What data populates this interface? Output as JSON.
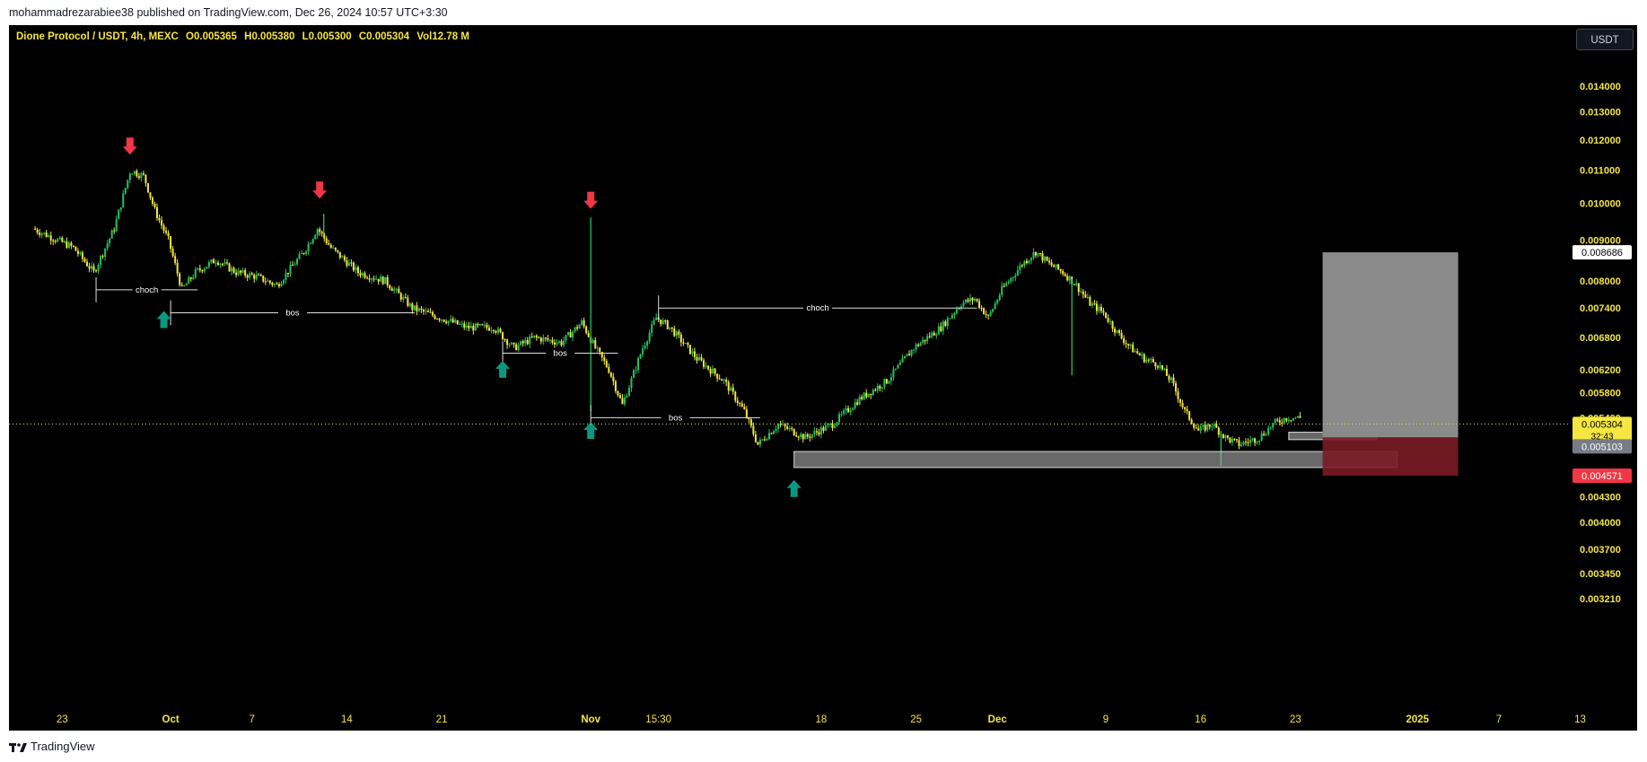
{
  "header": {
    "published_line": "mohammadrezarabiee38 published on TradingView.com, Dec 26, 2024 10:57 UTC+3:30"
  },
  "symbol_legend": {
    "name": "Dione Protocol / USDT, 4h, MEXC",
    "open": "O0.005365",
    "high": "H0.005380",
    "low": "L0.005300",
    "close": "C0.005304",
    "volume": "Vol12.78 M"
  },
  "currency_button": "USDT",
  "footer": {
    "brand": "TradingView",
    "logo_icon": "tradingview-logo-icon"
  },
  "colors": {
    "background": "#000000",
    "candle_up": "#22c55e",
    "candle_down": "#f5e642",
    "arrow_up": "#089981",
    "arrow_down": "#f23645",
    "stop_zone": "#7a1b22",
    "target_zone": "#8a8a8a",
    "price_label_current": "#f5e642",
    "price_label_stop": "#f23645"
  },
  "chart_data": {
    "type": "candlestick",
    "symbol": "Dione Protocol / USDT",
    "timeframe": "4h",
    "exchange": "MEXC",
    "y_scale": "log",
    "ylim": [
      0.00321,
      0.0155
    ],
    "y_ticks": [
      {
        "value": 0.014,
        "label": "0.014000"
      },
      {
        "value": 0.013,
        "label": "0.013000"
      },
      {
        "value": 0.012,
        "label": "0.012000"
      },
      {
        "value": 0.011,
        "label": "0.011000"
      },
      {
        "value": 0.01,
        "label": "0.010000"
      },
      {
        "value": 0.009,
        "label": "0.009000"
      },
      {
        "value": 0.008,
        "label": "0.008000"
      },
      {
        "value": 0.0074,
        "label": "0.007400"
      },
      {
        "value": 0.0068,
        "label": "0.006800"
      },
      {
        "value": 0.0062,
        "label": "0.006200"
      },
      {
        "value": 0.0058,
        "label": "0.005800"
      },
      {
        "value": 0.0054,
        "label": "0.005400"
      },
      {
        "value": 0.0043,
        "label": "0.004300"
      },
      {
        "value": 0.004,
        "label": "0.004000"
      },
      {
        "value": 0.0037,
        "label": "0.003700"
      },
      {
        "value": 0.00345,
        "label": "0.003450"
      },
      {
        "value": 0.00321,
        "label": "0.003210"
      }
    ],
    "x_ticks": [
      {
        "day": -7,
        "label": "23"
      },
      {
        "day": 1,
        "label": "Oct"
      },
      {
        "day": 7,
        "label": "7"
      },
      {
        "day": 14,
        "label": "14"
      },
      {
        "day": 21,
        "label": "21"
      },
      {
        "day": 32,
        "label": "Nov"
      },
      {
        "day": 37,
        "label": "15:30"
      },
      {
        "day": 49,
        "label": "18"
      },
      {
        "day": 56,
        "label": "25"
      },
      {
        "day": 62,
        "label": "Dec"
      },
      {
        "day": 70,
        "label": "9"
      },
      {
        "day": 77,
        "label": "16"
      },
      {
        "day": 84,
        "label": "23"
      },
      {
        "day": 93,
        "label": "2025"
      },
      {
        "day": 99,
        "label": "7"
      },
      {
        "day": 105,
        "label": "13"
      }
    ],
    "price_path": [
      [
        -9,
        0.0093
      ],
      [
        -6,
        0.0088
      ],
      [
        -4.5,
        0.0082
      ],
      [
        -3,
        0.0093
      ],
      [
        -1.8,
        0.011
      ],
      [
        -0.8,
        0.0108
      ],
      [
        0,
        0.0098
      ],
      [
        1,
        0.009
      ],
      [
        2,
        0.0078
      ],
      [
        3,
        0.0082
      ],
      [
        4.5,
        0.0085
      ],
      [
        6,
        0.0082
      ],
      [
        7.5,
        0.0081
      ],
      [
        9,
        0.0079
      ],
      [
        11,
        0.0087
      ],
      [
        12,
        0.0093
      ],
      [
        13,
        0.0088
      ],
      [
        15,
        0.0082
      ],
      [
        17,
        0.008
      ],
      [
        19,
        0.0074
      ],
      [
        21,
        0.0072
      ],
      [
        23,
        0.007
      ],
      [
        25,
        0.007
      ],
      [
        26.5,
        0.0066
      ],
      [
        28,
        0.0068
      ],
      [
        30,
        0.0067
      ],
      [
        31.5,
        0.0071
      ],
      [
        32.5,
        0.0066
      ],
      [
        33.5,
        0.0062
      ],
      [
        34.5,
        0.0056
      ],
      [
        36,
        0.0066
      ],
      [
        37,
        0.0072
      ],
      [
        38,
        0.007
      ],
      [
        40,
        0.0064
      ],
      [
        42,
        0.006
      ],
      [
        43.5,
        0.0055
      ],
      [
        44.5,
        0.005
      ],
      [
        46,
        0.0053
      ],
      [
        48,
        0.0051
      ],
      [
        50,
        0.0053
      ],
      [
        52,
        0.0057
      ],
      [
        54,
        0.006
      ],
      [
        56,
        0.0066
      ],
      [
        58,
        0.007
      ],
      [
        59.5,
        0.0075
      ],
      [
        60.5,
        0.0076
      ],
      [
        61.5,
        0.0072
      ],
      [
        62.5,
        0.0078
      ],
      [
        64,
        0.0084
      ],
      [
        65,
        0.0087
      ],
      [
        66,
        0.0084
      ],
      [
        67,
        0.0082
      ],
      [
        68,
        0.0079
      ],
      [
        69,
        0.0075
      ],
      [
        70,
        0.0073
      ],
      [
        71,
        0.0069
      ],
      [
        72,
        0.0066
      ],
      [
        73,
        0.0064
      ],
      [
        74,
        0.0063
      ],
      [
        75,
        0.006
      ],
      [
        76,
        0.0055
      ],
      [
        77,
        0.0052
      ],
      [
        78,
        0.0053
      ],
      [
        79,
        0.0051
      ],
      [
        80,
        0.005
      ],
      [
        81.5,
        0.0051
      ],
      [
        82.5,
        0.0053
      ],
      [
        83.5,
        0.0054
      ],
      [
        84.5,
        0.0054
      ]
    ],
    "spikes": [
      {
        "day": 12.3,
        "high": 0.0097
      },
      {
        "day": 32.0,
        "high": 0.0096,
        "low": 0.0055
      },
      {
        "day": 67.5,
        "low": 0.0061
      },
      {
        "day": 78.5,
        "low": 0.0047
      }
    ],
    "current_price": {
      "value": 0.005304,
      "label": "0.005304",
      "countdown": "32:43"
    },
    "annotations": {
      "structure_lines": [
        {
          "label": "choch",
          "price": 0.0078,
          "from_day": -4.5,
          "to_day": 3.0
        },
        {
          "label": "bos",
          "price": 0.0073,
          "from_day": 1.0,
          "to_day": 19.0
        },
        {
          "label": "bos",
          "price": 0.0065,
          "from_day": 25.5,
          "to_day": 34.0
        },
        {
          "label": "bos",
          "price": 0.0054,
          "from_day": 32.0,
          "to_day": 44.5
        },
        {
          "label": "choch",
          "price": 0.0074,
          "from_day": 37.0,
          "to_day": 60.5
        }
      ],
      "arrows_up": [
        {
          "day": 0.5,
          "price": 0.00715
        },
        {
          "day": 25.5,
          "price": 0.0062
        },
        {
          "day": 32.0,
          "price": 0.0052
        },
        {
          "day": 47.0,
          "price": 0.0044
        }
      ],
      "arrows_down": [
        {
          "day": -2.0,
          "price": 0.0118
        },
        {
          "day": 12.0,
          "price": 0.0104
        },
        {
          "day": 32.0,
          "price": 0.0101
        }
      ],
      "demand_zones": [
        {
          "from_day": 47.0,
          "to_day": 91.5,
          "top": 0.0049,
          "bottom": 0.00468
        },
        {
          "from_day": 83.5,
          "to_day": 90.0,
          "top": 0.00518,
          "bottom": 0.00507
        }
      ],
      "position": {
        "from_day": 86.0,
        "to_day": 96.0,
        "target": {
          "value": 0.008686,
          "label": "0.008686"
        },
        "entry": {
          "value": 0.005103,
          "label": "0.005103"
        },
        "stop": {
          "value": 0.004571,
          "label": "0.004571"
        }
      }
    }
  }
}
